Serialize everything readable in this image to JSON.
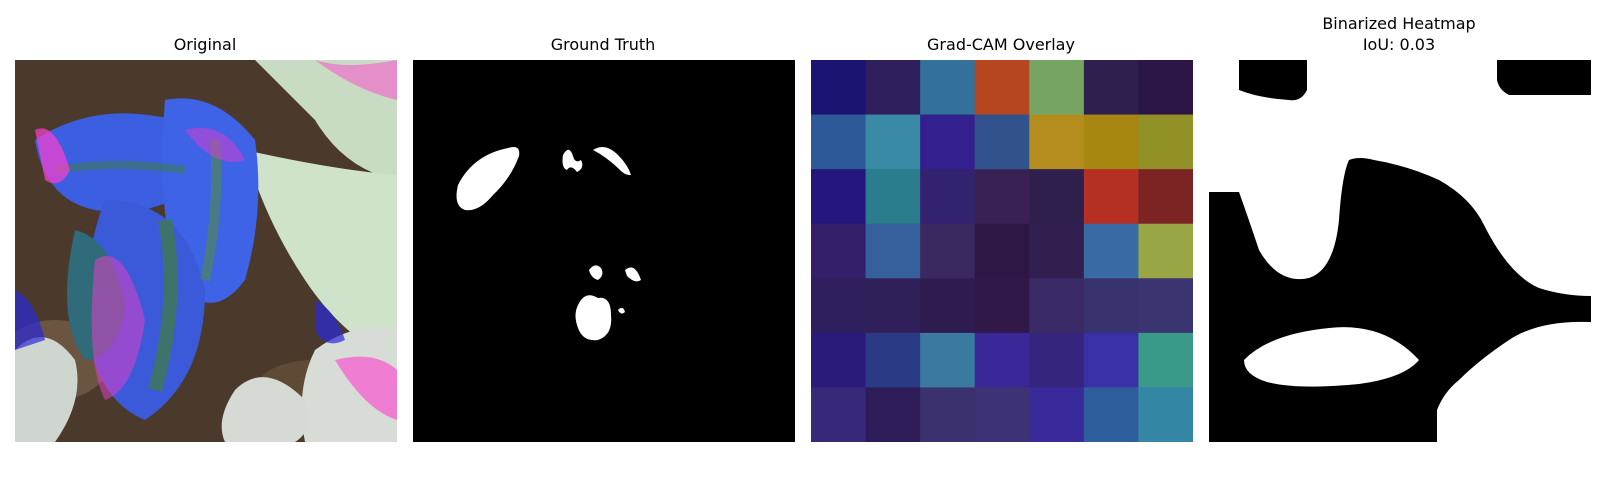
{
  "panels": [
    {
      "title": "Original"
    },
    {
      "title": "Ground Truth"
    },
    {
      "title": "Grad-CAM Overlay"
    },
    {
      "title": "Binarized Heatmap",
      "subtitle": "IoU: 0.03"
    }
  ],
  "gradcam_grid": [
    [
      "#1c1473",
      "#2f1f5d",
      "#33719a",
      "#b5461f",
      "#76a563",
      "#2e1f4f",
      "#2b1646"
    ],
    [
      "#2c5a98",
      "#3a8aa6",
      "#341f8f",
      "#32528e",
      "#b58c1e",
      "#a78612",
      "#929128"
    ],
    [
      "#23167c",
      "#2b7c8c",
      "#33226f",
      "#3a2155",
      "#2f1f4d",
      "#b52f22",
      "#7c2424"
    ],
    [
      "#341f6b",
      "#36609c",
      "#3a2960",
      "#2e1745",
      "#301f4f",
      "#3a6aa4",
      "#9aa546"
    ],
    [
      "#301f5f",
      "#30205a",
      "#2e1b50",
      "#301949",
      "#3a2a66",
      "#38336e",
      "#3a3470"
    ],
    [
      "#2a1a7a",
      "#2b3a85",
      "#3a7aa0",
      "#3a2898",
      "#35257c",
      "#3a31a8",
      "#3a9a8a"
    ],
    [
      "#37287a",
      "#2e1c58",
      "#3a316e",
      "#3e3277",
      "#382a98",
      "#2f5e9c",
      "#3386a4"
    ]
  ]
}
